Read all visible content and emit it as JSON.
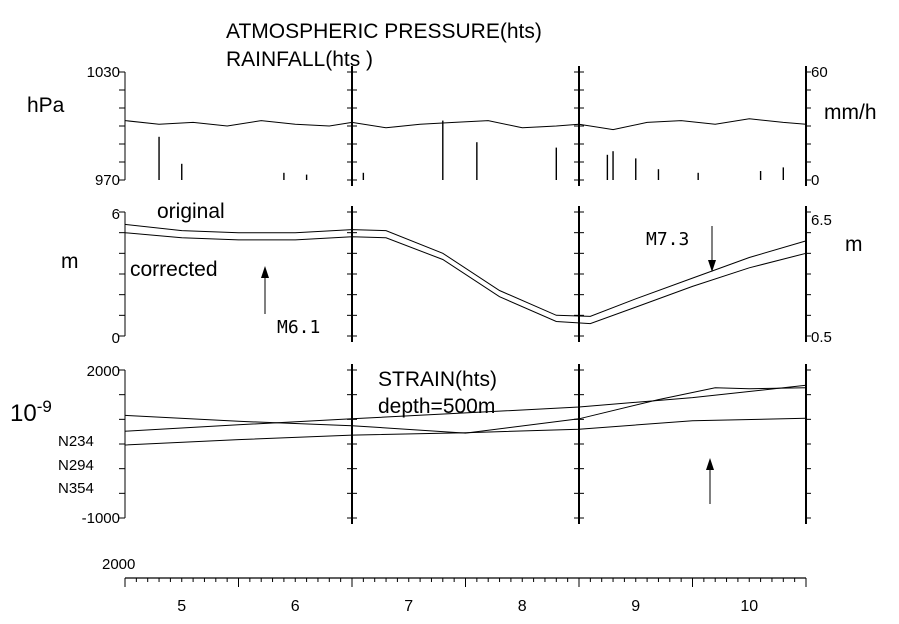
{
  "chart_data": [
    {
      "type": "line",
      "title": "ATMOSPHERIC PRESSURE(hts)",
      "subtitle": "RAINFALL(hts )",
      "ylabel_left": "hPa",
      "ylabel_right": "mm/h",
      "ylim_left": [
        970,
        1030
      ],
      "ylim_right": [
        0,
        60
      ],
      "tick_labels_left": [
        "1030",
        "970"
      ],
      "tick_labels_right": [
        "60",
        "0"
      ],
      "series": [
        {
          "kind": "line",
          "x": [
            4.5,
            4.8,
            5.1,
            5.4,
            5.7,
            6.0,
            6.3,
            6.5,
            6.8,
            7.1,
            7.4,
            7.7,
            8.0,
            8.3,
            8.5,
            8.8,
            9.1,
            9.4,
            9.7,
            10.0,
            10.3,
            10.5
          ],
          "values": [
            1003,
            1001,
            1002,
            1000,
            1003,
            1001,
            1000,
            1002,
            999,
            1001,
            1002,
            1003,
            999,
            1000,
            1001,
            998,
            1002,
            1003,
            1001,
            1004,
            1002,
            1001
          ]
        },
        {
          "kind": "bar",
          "x": [
            4.8,
            5.0,
            5.9,
            6.1,
            6.6,
            7.3,
            7.6,
            8.3,
            8.75,
            8.8,
            9.0,
            9.2,
            9.55,
            10.1,
            10.3
          ],
          "values": [
            24,
            9,
            4,
            3,
            4,
            33,
            21,
            18,
            14,
            16,
            12,
            6,
            4,
            5,
            7
          ]
        }
      ]
    },
    {
      "type": "line",
      "ylabel_left": "m",
      "ylabel_right": "m",
      "ylim_left": [
        0,
        6
      ],
      "ylim_right": [
        0.5,
        6.5
      ],
      "tick_labels_left": [
        "6",
        "0"
      ],
      "tick_labels_right": [
        "6.5",
        "0.5"
      ],
      "series": [
        {
          "name": "original",
          "x": [
            4.5,
            5.0,
            5.5,
            6.0,
            6.5,
            6.8,
            7.3,
            7.8,
            8.3,
            8.6,
            9.0,
            9.5,
            10.0,
            10.5
          ],
          "values": [
            5.4,
            5.1,
            5.0,
            5.0,
            5.15,
            5.1,
            4.0,
            2.2,
            1.0,
            0.95,
            1.8,
            2.8,
            3.8,
            4.6
          ]
        },
        {
          "name": "corrected",
          "x": [
            4.5,
            5.0,
            5.5,
            6.0,
            6.5,
            6.8,
            7.3,
            7.8,
            8.3,
            8.6,
            9.0,
            9.5,
            10.0,
            10.5
          ],
          "values": [
            5.0,
            4.75,
            4.65,
            4.65,
            4.8,
            4.75,
            3.7,
            1.9,
            0.7,
            0.6,
            1.4,
            2.4,
            3.3,
            4.0
          ]
        }
      ],
      "annotations": [
        "M6.1",
        "M7.3"
      ]
    },
    {
      "type": "line",
      "title": "STRAIN(hts)",
      "subtitle": "depth=500m",
      "ylabel_left": "10-9",
      "ylim": [
        -1000,
        2000
      ],
      "tick_labels_left": [
        "2000",
        "-1000"
      ],
      "series": [
        {
          "name": "N234",
          "x": [
            4.5,
            5.5,
            6.5,
            7.5,
            8.5,
            9.2,
            9.7,
            10.0,
            10.5
          ],
          "values": [
            1080,
            960,
            870,
            720,
            1010,
            1400,
            1640,
            1620,
            1640
          ]
        },
        {
          "name": "N294",
          "x": [
            4.5,
            5.5,
            6.5,
            7.5,
            8.5,
            9.5,
            10.5
          ],
          "values": [
            760,
            890,
            1010,
            1130,
            1250,
            1440,
            1690
          ]
        },
        {
          "name": "N354",
          "x": [
            4.5,
            5.5,
            6.5,
            7.5,
            8.5,
            9.5,
            10.5
          ],
          "values": [
            480,
            590,
            680,
            730,
            800,
            970,
            1020
          ]
        }
      ]
    },
    {
      "type": "axis",
      "year_label": "2000",
      "categories": [
        "5",
        "6",
        "7",
        "8",
        "9",
        "10"
      ],
      "xlim": [
        4.5,
        10.5
      ]
    }
  ],
  "colors": {
    "ink": "#000000",
    "background": "#ffffff"
  }
}
